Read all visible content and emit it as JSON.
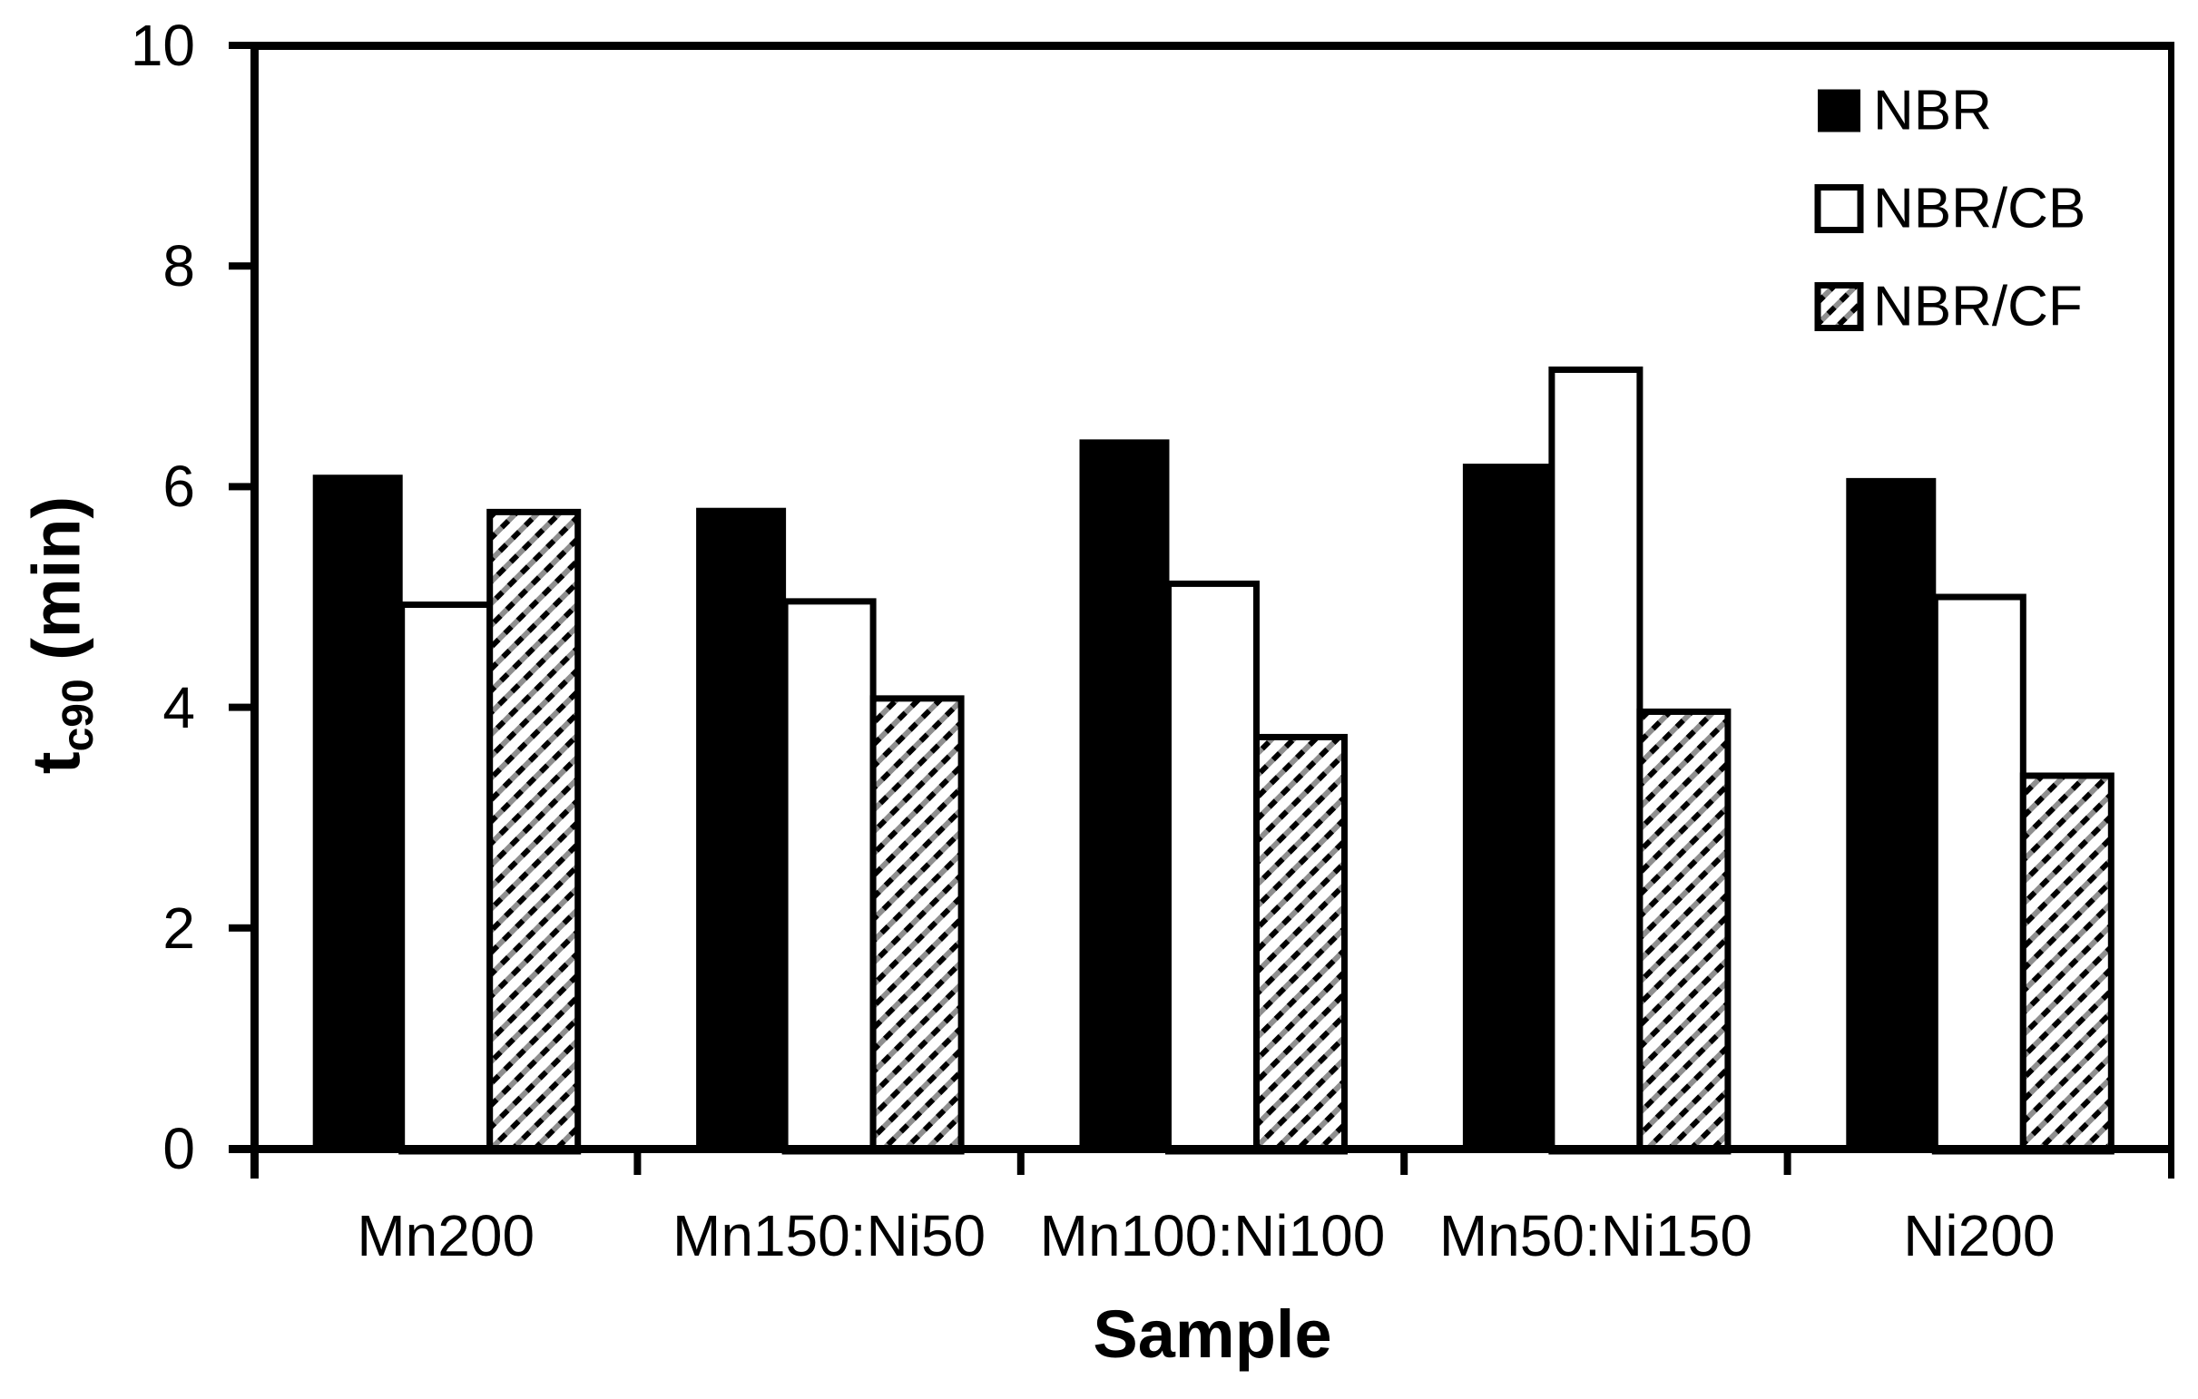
{
  "chart_data": {
    "type": "bar",
    "title": "",
    "xlabel": "Sample",
    "ylabel": {
      "base": "t",
      "subscript": "c90",
      "unit": " (min)"
    },
    "ylim": [
      0,
      10
    ],
    "yticks": [
      "0",
      "2",
      "4",
      "6",
      "8",
      "10"
    ],
    "ytick_values": [
      0,
      2,
      4,
      6,
      8,
      10
    ],
    "grid": false,
    "legend_position": "top-right-inside",
    "categories": [
      "Mn200",
      "Mn150:Ni50",
      "Mn100:Ni100",
      "Mn50:Ni150",
      "Ni200"
    ],
    "series": [
      {
        "name": "NBR",
        "fill": "solid-black",
        "values": [
          6.1,
          5.8,
          6.42,
          6.2,
          6.07
        ]
      },
      {
        "name": "NBR/CB",
        "fill": "white-outlined",
        "values": [
          4.93,
          4.96,
          5.12,
          7.06,
          5.0
        ]
      },
      {
        "name": "NBR/CF",
        "fill": "diagonal-hatch",
        "values": [
          5.77,
          4.08,
          3.73,
          3.96,
          3.38
        ]
      }
    ],
    "colors": {
      "bar_black": "#000000",
      "bar_white": "#ffffff",
      "hatch_dark": "#000000",
      "hatch_gray": "#8f8f8f",
      "axis": "#000000",
      "text": "#000000",
      "background": "#ffffff"
    }
  }
}
